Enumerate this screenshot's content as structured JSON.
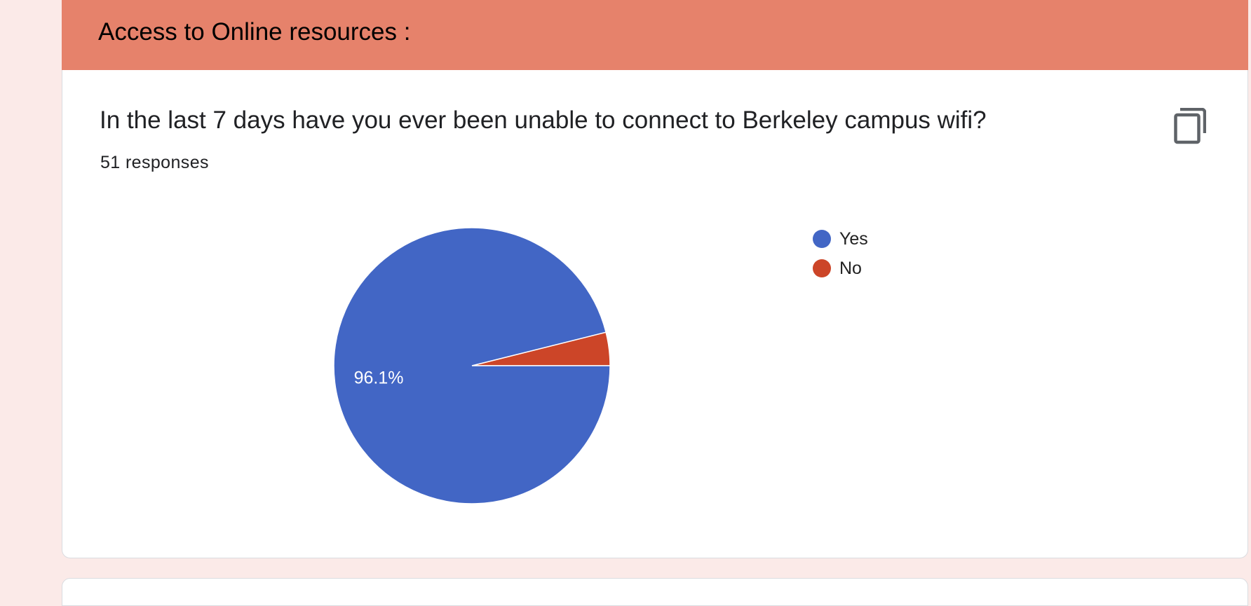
{
  "section": {
    "title": "Access to Online resources :"
  },
  "question": {
    "title": "In the last 7 days have you ever been unable to connect to Berkeley campus wifi?",
    "responses": "51 responses",
    "copy_icon": "copy-icon"
  },
  "colors": {
    "header": "#e6826b",
    "background": "#fbeae8",
    "yes": "#4266c5",
    "no": "#cc4528"
  },
  "chart_data": {
    "type": "pie",
    "categories": [
      "Yes",
      "No"
    ],
    "values": [
      96.1,
      3.9
    ],
    "data_labels": [
      "96.1%",
      ""
    ],
    "colors": [
      "#4266c5",
      "#cc4528"
    ],
    "legend_placement": "right"
  }
}
